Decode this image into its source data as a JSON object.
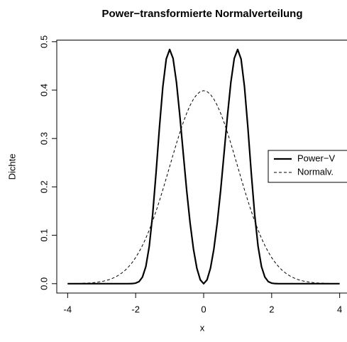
{
  "chart_data": {
    "type": "line",
    "title": "Power−transformierte Normalverteilung",
    "x_label": "x",
    "y_label": "Dichte",
    "x": [
      -4,
      -3.9,
      -3.8,
      -3.7,
      -3.6,
      -3.5,
      -3.4,
      -3.3,
      -3.2,
      -3.1,
      -3,
      -2.9,
      -2.8,
      -2.7,
      -2.6,
      -2.5,
      -2.4,
      -2.3,
      -2.2,
      -2.1,
      -2,
      -1.9,
      -1.8,
      -1.7,
      -1.6,
      -1.5,
      -1.4,
      -1.3,
      -1.2,
      -1.1,
      -1,
      -0.9,
      -0.8,
      -0.7,
      -0.6,
      -0.5,
      -0.4,
      -0.3,
      -0.2,
      -0.1,
      0,
      0.1,
      0.2,
      0.3,
      0.4,
      0.5,
      0.6,
      0.7,
      0.8,
      0.9,
      1,
      1.1,
      1.2,
      1.3,
      1.4,
      1.5,
      1.6,
      1.7,
      1.8,
      1.9,
      2,
      2.1,
      2.2,
      2.3,
      2.4,
      2.5,
      2.6,
      2.7,
      2.8,
      2.9,
      3,
      3.1,
      3.2,
      3.3,
      3.4,
      3.5,
      3.6,
      3.7,
      3.8,
      3.9,
      4
    ],
    "series": [
      {
        "name": "Power−V",
        "color": "#000000",
        "linestyle": "solid",
        "linewidth": 2.2,
        "values": [
          0,
          0,
          0,
          0,
          0,
          0,
          0,
          0,
          0,
          0,
          0,
          0,
          0,
          0,
          0,
          0,
          0,
          0,
          0,
          0.0002,
          0.0011,
          0.0043,
          0.0136,
          0.0354,
          0.0771,
          0.143,
          0.2291,
          0.3233,
          0.4074,
          0.4644,
          0.484,
          0.4656,
          0.4161,
          0.3468,
          0.2693,
          0.193,
          0.1261,
          0.0715,
          0.0319,
          0.008,
          0,
          0.008,
          0.0319,
          0.0715,
          0.1261,
          0.193,
          0.2693,
          0.3468,
          0.4161,
          0.4656,
          0.484,
          0.4644,
          0.4074,
          0.3233,
          0.2291,
          0.143,
          0.0771,
          0.0354,
          0.0136,
          0.0043,
          0.0011,
          0.0002,
          0,
          0,
          0,
          0,
          0,
          0,
          0,
          0,
          0,
          0,
          0,
          0,
          0,
          0,
          0,
          0,
          0,
          0,
          0
        ]
      },
      {
        "name": "Normalv.",
        "color": "#000000",
        "linestyle": "dashed",
        "linewidth": 1,
        "values": [
          0.0001,
          0.0002,
          0.0003,
          0.0004,
          0.0006,
          0.0009,
          0.0012,
          0.0017,
          0.0024,
          0.0033,
          0.0044,
          0.006,
          0.0079,
          0.0104,
          0.0136,
          0.0175,
          0.0224,
          0.0283,
          0.0355,
          0.044,
          0.054,
          0.0656,
          0.079,
          0.094,
          0.1109,
          0.1295,
          0.1497,
          0.1714,
          0.1942,
          0.2179,
          0.242,
          0.2661,
          0.2897,
          0.3123,
          0.3332,
          0.3521,
          0.3683,
          0.3814,
          0.391,
          0.397,
          0.3989,
          0.397,
          0.391,
          0.3814,
          0.3683,
          0.3521,
          0.3332,
          0.3123,
          0.2897,
          0.2661,
          0.242,
          0.2179,
          0.1942,
          0.1714,
          0.1497,
          0.1295,
          0.1109,
          0.094,
          0.079,
          0.0656,
          0.054,
          0.044,
          0.0355,
          0.0283,
          0.0224,
          0.0175,
          0.0136,
          0.0104,
          0.0079,
          0.006,
          0.0044,
          0.0033,
          0.0024,
          0.0017,
          0.0012,
          0.0009,
          0.0006,
          0.0004,
          0.0003,
          0.0002,
          0.0001
        ]
      }
    ],
    "xlim": [
      -4.32,
      4.32
    ],
    "xticks": [
      -4,
      -2,
      0,
      2,
      4
    ],
    "ylim": [
      -0.01936,
      0.50336
    ],
    "yticks": [
      {
        "value": 0,
        "label": "0.0"
      },
      0.1,
      0.2,
      0.3,
      0.4,
      0.5
    ],
    "legend": "right"
  }
}
